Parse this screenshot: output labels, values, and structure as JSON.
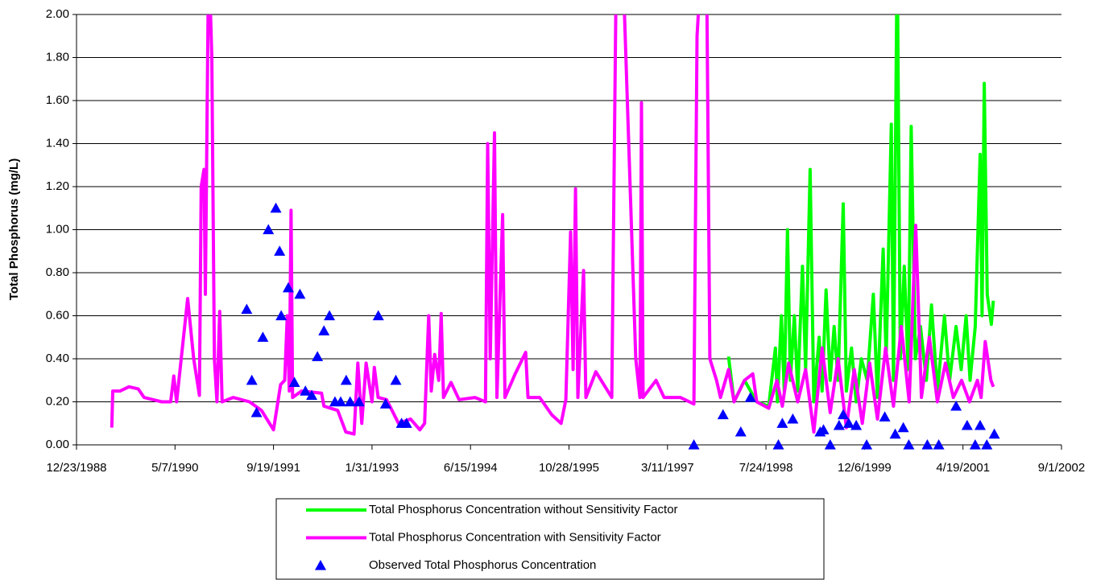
{
  "chart_data": {
    "type": "line",
    "y_label": "Total Phosphorus (mg/L)",
    "xlim": [
      "12/23/1988",
      "9/1/2002"
    ],
    "xticks": [
      "12/23/1988",
      "5/7/1990",
      "9/19/1991",
      "1/31/1993",
      "6/15/1994",
      "10/28/1995",
      "3/11/1997",
      "7/24/1998",
      "12/6/1999",
      "4/19/2001",
      "9/1/2002"
    ],
    "ylim": [
      0,
      2
    ],
    "yticks": [
      {
        "value": 0,
        "label": "0.00"
      },
      {
        "value": 0.2,
        "label": "0.20"
      },
      {
        "value": 0.4,
        "label": "0.40"
      },
      {
        "value": 0.6,
        "label": "0.60"
      },
      {
        "value": 0.8,
        "label": "0.80"
      },
      {
        "value": 1.0,
        "label": "1.00"
      },
      {
        "value": 1.2,
        "label": "1.20"
      },
      {
        "value": 1.4,
        "label": "1.40"
      },
      {
        "value": 1.6,
        "label": "1.60"
      },
      {
        "value": 1.8,
        "label": "1.80"
      },
      {
        "value": 2.0,
        "label": "2.00"
      }
    ],
    "grid": true,
    "legend": "bottom",
    "series": [
      {
        "name": "Total Phosphorus Concentration without Sensitivity Factor",
        "type": "line",
        "color": "#00ff00",
        "x": [
          "1/15/1998",
          "2/12/1998",
          "4/6/1998",
          "6/7/1998",
          "8/7/1998",
          "9/10/1998",
          "9/20/1998",
          "10/10/1998",
          "10/25/1998",
          "11/10/1998",
          "11/25/1998",
          "12/15/1998",
          "1/1/1999",
          "1/25/1999",
          "2/10/1999",
          "3/5/1999",
          "3/24/1999",
          "4/20/1999",
          "5/5/1999",
          "5/25/1999",
          "6/15/1999",
          "7/5/1999",
          "7/25/1999",
          "8/20/1999",
          "9/5/1999",
          "10/1/1999",
          "10/25/1999",
          "11/20/1999",
          "12/20/1999",
          "1/20/2000",
          "2/10/2000",
          "3/10/2000",
          "3/25/2000",
          "4/20/2000",
          "5/1/2000",
          "5/20/2000",
          "6/5/2000",
          "6/25/2000",
          "7/15/2000",
          "7/30/2000",
          "8/20/2000",
          "9/15/2000",
          "10/15/2000",
          "11/10/2000",
          "12/10/2000",
          "1/15/2001",
          "2/10/2001",
          "3/15/2001",
          "4/10/2001",
          "5/5/2001",
          "5/25/2001",
          "6/20/2001",
          "7/15/2001",
          "7/25/2001",
          "8/5/2001",
          "8/20/2001",
          "9/10/2001",
          "9/20/2001"
        ],
        "values": [
          0.41,
          0.2,
          0.3,
          0.2,
          0.18,
          0.45,
          0.2,
          0.6,
          0.25,
          1.0,
          0.3,
          0.6,
          0.25,
          0.83,
          0.35,
          1.28,
          0.2,
          0.5,
          0.25,
          0.72,
          0.3,
          0.55,
          0.3,
          1.12,
          0.25,
          0.45,
          0.2,
          0.4,
          0.3,
          0.7,
          0.22,
          0.91,
          0.4,
          1.49,
          0.3,
          2.3,
          0.4,
          0.83,
          0.35,
          1.48,
          0.4,
          0.55,
          0.3,
          0.65,
          0.25,
          0.6,
          0.3,
          0.55,
          0.35,
          0.6,
          0.3,
          0.55,
          1.35,
          0.6,
          1.68,
          0.7,
          0.56,
          0.67
        ]
      },
      {
        "name": "Total Phosphorus Concentration with Sensitivity Factor",
        "type": "line",
        "color": "#ff00ff",
        "x": [
          "6/20/1989",
          "6/25/1989",
          "8/1/1989",
          "9/15/1989",
          "11/1/1989",
          "12/1/1989",
          "1/15/1990",
          "3/1/1990",
          "4/15/1990",
          "5/1/1990",
          "5/15/1990",
          "7/10/1990",
          "8/10/1990",
          "9/8/1990",
          "9/17/1990",
          "10/1/1990",
          "10/8/1990",
          "10/25/1990",
          "11/10/1990",
          "11/23/1990",
          "12/6/1990",
          "12/20/1990",
          "1/1/1991",
          "2/26/1991",
          "5/20/1991",
          "7/20/1991",
          "9/19/1991",
          "10/25/1991",
          "11/15/1991",
          "11/28/1991",
          "12/8/1991",
          "12/17/1991",
          "12/25/1991",
          "2/8/1992",
          "5/20/1992",
          "6/1/1992",
          "8/10/1992",
          "9/20/1992",
          "11/1/1992",
          "11/20/1992",
          "12/10/1992",
          "1/1/1993",
          "1/31/1993",
          "2/12/1993",
          "3/3/1993",
          "4/15/1993",
          "6/15/1993",
          "8/15/1993",
          "10/1/1993",
          "10/25/1993",
          "11/15/1993",
          "11/28/1993",
          "12/15/1993",
          "1/5/1994",
          "1/17/1994",
          "1/29/1994",
          "3/8/1994",
          "4/18/1994",
          "7/8/1994",
          "8/30/1994",
          "9/10/1994",
          "9/23/1994",
          "10/15/1994",
          "10/27/1994",
          "11/25/1994",
          "12/7/1994",
          "1/28/1995",
          "3/22/1995",
          "4/3/1995",
          "6/1/1995",
          "8/1/1995",
          "9/18/1995",
          "10/12/1995",
          "11/5/1995",
          "11/18/1995",
          "11/30/1995",
          "12/12/1995",
          "1/10/1996",
          "1/22/1996",
          "3/12/1996",
          "6/1/1996",
          "6/25/1996",
          "7/25/1996",
          "10/1/1996",
          "10/22/1996",
          "10/30/1996",
          "11/7/1996",
          "1/12/1997",
          "2/22/1997",
          "5/15/1997",
          "7/23/1997",
          "8/8/1997",
          "9/2/1997",
          "9/25/1997",
          "10/12/1997",
          "11/15/1997",
          "12/5/1997",
          "1/15/1998",
          "2/12/1998",
          "4/6/1998",
          "5/18/1998",
          "6/7/1998",
          "8/7/1998",
          "9/17/1998",
          "10/15/1998",
          "11/16/1998",
          "1/1/1999",
          "2/10/1999",
          "3/24/1999",
          "5/5/1999",
          "6/15/1999",
          "7/25/1999",
          "9/5/1999",
          "10/15/1999",
          "11/25/1999",
          "1/1/2000",
          "2/10/2000",
          "3/22/2000",
          "5/1/2000",
          "6/10/2000",
          "7/20/2000",
          "8/22/2000",
          "9/20/2000",
          "10/30/2000",
          "12/10/2000",
          "1/20/2001",
          "3/1/2001",
          "4/12/2001",
          "5/22/2001",
          "7/1/2001",
          "7/20/2001",
          "8/10/2001",
          "9/8/2001",
          "9/20/2001"
        ],
        "values": [
          0.08,
          0.25,
          0.25,
          0.27,
          0.26,
          0.22,
          0.21,
          0.2,
          0.2,
          0.32,
          0.2,
          0.68,
          0.4,
          0.23,
          1.2,
          1.28,
          0.7,
          2.3,
          1.8,
          0.4,
          0.2,
          0.62,
          0.2,
          0.22,
          0.2,
          0.16,
          0.07,
          0.28,
          0.3,
          0.6,
          0.25,
          1.09,
          0.22,
          0.25,
          0.24,
          0.18,
          0.16,
          0.06,
          0.05,
          0.38,
          0.1,
          0.38,
          0.2,
          0.36,
          0.22,
          0.21,
          0.1,
          0.12,
          0.07,
          0.1,
          0.6,
          0.25,
          0.42,
          0.3,
          0.61,
          0.22,
          0.29,
          0.21,
          0.22,
          0.2,
          1.4,
          0.4,
          1.45,
          0.22,
          1.07,
          0.22,
          0.33,
          0.43,
          0.22,
          0.22,
          0.14,
          0.1,
          0.21,
          0.99,
          0.35,
          1.19,
          0.22,
          0.81,
          0.22,
          0.34,
          0.22,
          2.3,
          2.3,
          0.4,
          0.22,
          1.59,
          0.22,
          0.3,
          0.22,
          0.22,
          0.19,
          1.9,
          2.3,
          2.3,
          0.4,
          0.3,
          0.22,
          0.35,
          0.2,
          0.3,
          0.33,
          0.2,
          0.17,
          0.3,
          0.18,
          0.38,
          0.2,
          0.35,
          0.06,
          0.45,
          0.15,
          0.4,
          0.08,
          0.35,
          0.1,
          0.38,
          0.12,
          0.45,
          0.18,
          0.55,
          0.2,
          1.02,
          0.22,
          0.5,
          0.2,
          0.38,
          0.22,
          0.3,
          0.2,
          0.3,
          0.22,
          0.48,
          0.3,
          0.27
        ]
      },
      {
        "name": "Observed Total Phosphorus Concentration",
        "type": "scatter",
        "color": "#0000ff",
        "x": [
          "5/6/1991",
          "6/1/1991",
          "6/25/1991",
          "7/27/1991",
          "8/24/1991",
          "10/1/1991",
          "10/20/1991",
          "10/28/1991",
          "12/3/1991",
          "1/3/1992",
          "1/31/1992",
          "2/28/1992",
          "3/31/1992",
          "4/29/1992",
          "6/1/1992",
          "6/29/1992",
          "7/27/1992",
          "8/25/1992",
          "9/22/1992",
          "10/12/1992",
          "11/26/1992",
          "3/4/1993",
          "4/10/1993",
          "6/1/1993",
          "6/30/1993",
          "7/25/1993",
          "7/23/1997",
          "12/18/1997",
          "3/18/1998",
          "5/6/1998",
          "9/25/1998",
          "10/15/1998",
          "12/7/1998",
          "4/25/1999",
          "5/12/1999",
          "6/15/1999",
          "7/30/1999",
          "8/20/1999",
          "9/17/1999",
          "10/25/1999",
          "12/17/1999",
          "3/18/2000",
          "5/10/2000",
          "6/20/2000",
          "7/18/2000",
          "10/20/2000",
          "12/17/2000",
          "3/15/2001",
          "5/10/2001",
          "6/20/2001",
          "7/15/2001",
          "8/18/2001",
          "9/25/2001"
        ],
        "values": [
          0.63,
          0.3,
          0.15,
          0.5,
          1.0,
          1.1,
          0.9,
          0.6,
          0.73,
          0.29,
          0.7,
          0.25,
          0.23,
          0.41,
          0.53,
          0.6,
          0.2,
          0.2,
          0.3,
          0.2,
          0.2,
          0.6,
          0.19,
          0.3,
          0.1,
          0.1,
          0.0,
          0.14,
          0.06,
          0.22,
          0.0,
          0.1,
          0.12,
          0.06,
          0.07,
          0.0,
          0.09,
          0.14,
          0.1,
          0.09,
          0.0,
          0.13,
          0.05,
          0.08,
          0.0,
          0.0,
          0.0,
          0.18,
          0.09,
          0.0,
          0.09,
          0.0,
          0.05
        ]
      }
    ]
  }
}
